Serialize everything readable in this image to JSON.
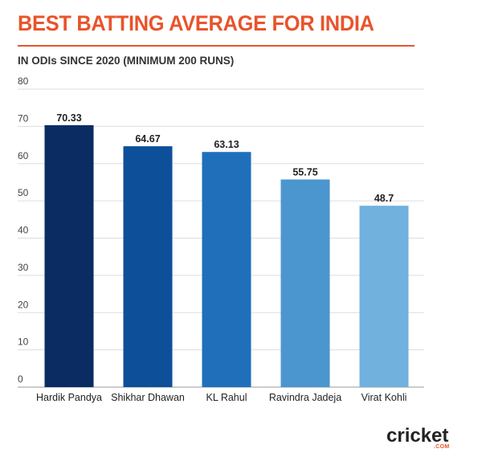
{
  "title": "BEST BATTING AVERAGE FOR INDIA",
  "subtitle": "IN ODIs SINCE 2020 (MINIMUM 200 RUNS)",
  "brand": {
    "logo_main": "cricket",
    "logo_sub": ".COM"
  },
  "colors": {
    "accent": "#e8542b",
    "bars": [
      "#0b2c63",
      "#0e4f9a",
      "#1f6fbb",
      "#4b96cf",
      "#70b1dd"
    ]
  },
  "chart_data": {
    "type": "bar",
    "title": "BEST BATTING AVERAGE FOR INDIA",
    "subtitle": "IN ODIs SINCE 2020 (MINIMUM 200 RUNS)",
    "categories": [
      "Hardik Pandya",
      "Shikhar Dhawan",
      "KL Rahul",
      "Ravindra Jadeja",
      "Virat Kohli"
    ],
    "values": [
      70.33,
      64.67,
      63.13,
      55.75,
      48.7
    ],
    "value_labels": [
      "70.33",
      "64.67",
      "63.13",
      "55.75",
      "48.7"
    ],
    "ylim": [
      0,
      80
    ],
    "yticks": [
      0,
      10,
      20,
      30,
      40,
      50,
      60,
      70,
      80
    ],
    "xlabel": "",
    "ylabel": "",
    "grid": true
  }
}
